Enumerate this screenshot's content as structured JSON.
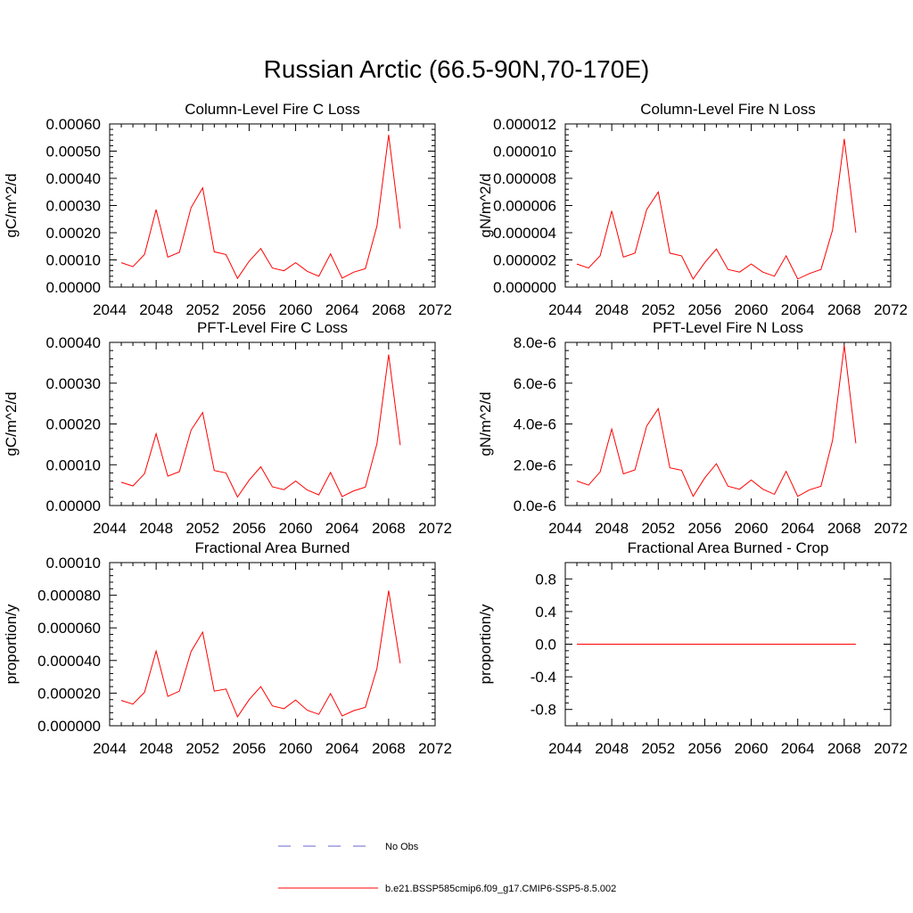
{
  "title": "Russian Arctic (66.5-90N,70-170E)",
  "colors": {
    "model_line": "#ff0000",
    "obs_line": "#6666cc",
    "axis": "#000000"
  },
  "legend": {
    "entries": [
      {
        "label": "No Obs",
        "style": "dashed",
        "color": "#6666cc"
      },
      {
        "label": "b.e21.BSSP585cmip6.f09_g17.CMIP6-SSP5-8.5.002",
        "style": "solid",
        "color": "#ff0000"
      }
    ]
  },
  "chart_data": [
    {
      "type": "line",
      "title": "Column-Level Fire C Loss",
      "ylabel": "gC/m^2/d",
      "xlim": [
        2044,
        2072
      ],
      "ylim": [
        0,
        0.0006
      ],
      "xticks": [
        "2044",
        "2048",
        "2052",
        "2056",
        "2060",
        "2064",
        "2068",
        "2072"
      ],
      "yticks": [
        "0.00000",
        "0.00010",
        "0.00020",
        "0.00030",
        "0.00040",
        "0.00050",
        "0.00060"
      ],
      "x": [
        2045,
        2046,
        2047,
        2048,
        2049,
        2050,
        2051,
        2052,
        2053,
        2054,
        2055,
        2056,
        2057,
        2058,
        2059,
        2060,
        2061,
        2062,
        2063,
        2064,
        2065,
        2066,
        2067,
        2068,
        2069
      ],
      "series": [
        {
          "values": [
            9e-05,
            7.5e-05,
            0.00012,
            0.000285,
            0.00011,
            0.000128,
            0.000292,
            0.000365,
            0.00013,
            0.00012,
            3.2e-05,
            9.5e-05,
            0.000142,
            7e-05,
            6e-05,
            9e-05,
            5.8e-05,
            4e-05,
            0.000122,
            3.3e-05,
            5.5e-05,
            6.8e-05,
            0.000225,
            0.00056,
            0.000215
          ]
        }
      ]
    },
    {
      "type": "line",
      "title": "Column-Level Fire N Loss",
      "ylabel": "gN/m^2/d",
      "xlim": [
        2044,
        2072
      ],
      "ylim": [
        0,
        1.2e-05
      ],
      "xticks": [
        "2044",
        "2048",
        "2052",
        "2056",
        "2060",
        "2064",
        "2068",
        "2072"
      ],
      "yticks": [
        "0.000000",
        "0.000002",
        "0.000004",
        "0.000006",
        "0.000008",
        "0.000010",
        "0.000012"
      ],
      "x": [
        2045,
        2046,
        2047,
        2048,
        2049,
        2050,
        2051,
        2052,
        2053,
        2054,
        2055,
        2056,
        2057,
        2058,
        2059,
        2060,
        2061,
        2062,
        2063,
        2064,
        2065,
        2066,
        2067,
        2068,
        2069
      ],
      "series": [
        {
          "values": [
            1.7e-06,
            1.4e-06,
            2.3e-06,
            5.6e-06,
            2.2e-06,
            2.5e-06,
            5.7e-06,
            7e-06,
            2.5e-06,
            2.3e-06,
            6e-07,
            1.8e-06,
            2.8e-06,
            1.3e-06,
            1.1e-06,
            1.7e-06,
            1.1e-06,
            8e-07,
            2.3e-06,
            6e-07,
            1e-06,
            1.3e-06,
            4.2e-06,
            1.09e-05,
            4e-06
          ]
        }
      ]
    },
    {
      "type": "line",
      "title": "PFT-Level Fire C Loss",
      "ylabel": "gC/m^2/d",
      "xlim": [
        2044,
        2072
      ],
      "ylim": [
        0,
        0.0004
      ],
      "xticks": [
        "2044",
        "2048",
        "2052",
        "2056",
        "2060",
        "2064",
        "2068",
        "2072"
      ],
      "yticks": [
        "0.00000",
        "0.00010",
        "0.00020",
        "0.00030",
        "0.00040"
      ],
      "x": [
        2045,
        2046,
        2047,
        2048,
        2049,
        2050,
        2051,
        2052,
        2053,
        2054,
        2055,
        2056,
        2057,
        2058,
        2059,
        2060,
        2061,
        2062,
        2063,
        2064,
        2065,
        2066,
        2067,
        2068,
        2069
      ],
      "series": [
        {
          "values": [
            5.7e-05,
            4.8e-05,
            7.8e-05,
            0.000176,
            7.2e-05,
            8.3e-05,
            0.000185,
            0.000228,
            8.6e-05,
            8e-05,
            2.1e-05,
            6.2e-05,
            9.5e-05,
            4.6e-05,
            3.9e-05,
            6e-05,
            3.8e-05,
            2.6e-05,
            8.1e-05,
            2.2e-05,
            3.6e-05,
            4.5e-05,
            0.000152,
            0.00037,
            0.000148
          ]
        }
      ]
    },
    {
      "type": "line",
      "title": "PFT-Level Fire N Loss",
      "ylabel": "gN/m^2/d",
      "xlim": [
        2044,
        2072
      ],
      "ylim": [
        0,
        8e-06
      ],
      "xticks": [
        "2044",
        "2048",
        "2052",
        "2056",
        "2060",
        "2064",
        "2068",
        "2072"
      ],
      "yticks": [
        "0.0e-6",
        "2.0e-6",
        "4.0e-6",
        "6.0e-6",
        "8.0e-6"
      ],
      "x": [
        2045,
        2046,
        2047,
        2048,
        2049,
        2050,
        2051,
        2052,
        2053,
        2054,
        2055,
        2056,
        2057,
        2058,
        2059,
        2060,
        2061,
        2062,
        2063,
        2064,
        2065,
        2066,
        2067,
        2068,
        2069
      ],
      "series": [
        {
          "values": [
            1.2e-06,
            1e-06,
            1.65e-06,
            3.75e-06,
            1.55e-06,
            1.75e-06,
            3.9e-06,
            4.75e-06,
            1.85e-06,
            1.73e-06,
            4.5e-07,
            1.35e-06,
            2.05e-06,
            9.5e-07,
            8e-07,
            1.25e-06,
            8e-07,
            5.5e-07,
            1.68e-06,
            4.5e-07,
            7.7e-07,
            9.5e-07,
            3.2e-06,
            7.85e-06,
            3.05e-06
          ]
        }
      ]
    },
    {
      "type": "line",
      "title": "Fractional Area Burned",
      "ylabel": "proportion/y",
      "xlim": [
        2044,
        2072
      ],
      "ylim": [
        0,
        0.0001
      ],
      "xticks": [
        "2044",
        "2048",
        "2052",
        "2056",
        "2060",
        "2064",
        "2068",
        "2072"
      ],
      "yticks": [
        "0.000000",
        "0.000020",
        "0.000040",
        "0.000060",
        "0.000080",
        "0.00010"
      ],
      "x": [
        2045,
        2046,
        2047,
        2048,
        2049,
        2050,
        2051,
        2052,
        2053,
        2054,
        2055,
        2056,
        2057,
        2058,
        2059,
        2060,
        2061,
        2062,
        2063,
        2064,
        2065,
        2066,
        2067,
        2068,
        2069
      ],
      "series": [
        {
          "values": [
            1.55e-05,
            1.33e-05,
            2.05e-05,
            4.58e-05,
            1.8e-05,
            2.12e-05,
            4.55e-05,
            5.74e-05,
            2.12e-05,
            2.25e-05,
            5.5e-06,
            1.6e-05,
            2.4e-05,
            1.22e-05,
            1.05e-05,
            1.58e-05,
            9.5e-06,
            7e-06,
            1.97e-05,
            6e-06,
            9.3e-06,
            1.13e-05,
            3.52e-05,
            8.28e-05,
            3.83e-05
          ]
        }
      ]
    },
    {
      "type": "line",
      "title": "Fractional Area Burned - Crop",
      "ylabel": "proportion/y",
      "xlim": [
        2044,
        2072
      ],
      "ylim": [
        -1,
        1
      ],
      "xticks": [
        "2044",
        "2048",
        "2052",
        "2056",
        "2060",
        "2064",
        "2068",
        "2072"
      ],
      "yticks": [
        "-0.8",
        "-0.4",
        "0.0",
        "0.4",
        "0.8"
      ],
      "ytick_values": [
        -0.8,
        -0.4,
        0.0,
        0.4,
        0.8
      ],
      "x": [
        2045,
        2046,
        2047,
        2048,
        2049,
        2050,
        2051,
        2052,
        2053,
        2054,
        2055,
        2056,
        2057,
        2058,
        2059,
        2060,
        2061,
        2062,
        2063,
        2064,
        2065,
        2066,
        2067,
        2068,
        2069
      ],
      "series": [
        {
          "values": [
            0,
            0,
            0,
            0,
            0,
            0,
            0,
            0,
            0,
            0,
            0,
            0,
            0,
            0,
            0,
            0,
            0,
            0,
            0,
            0,
            0,
            0,
            0,
            0,
            0
          ]
        }
      ]
    }
  ]
}
